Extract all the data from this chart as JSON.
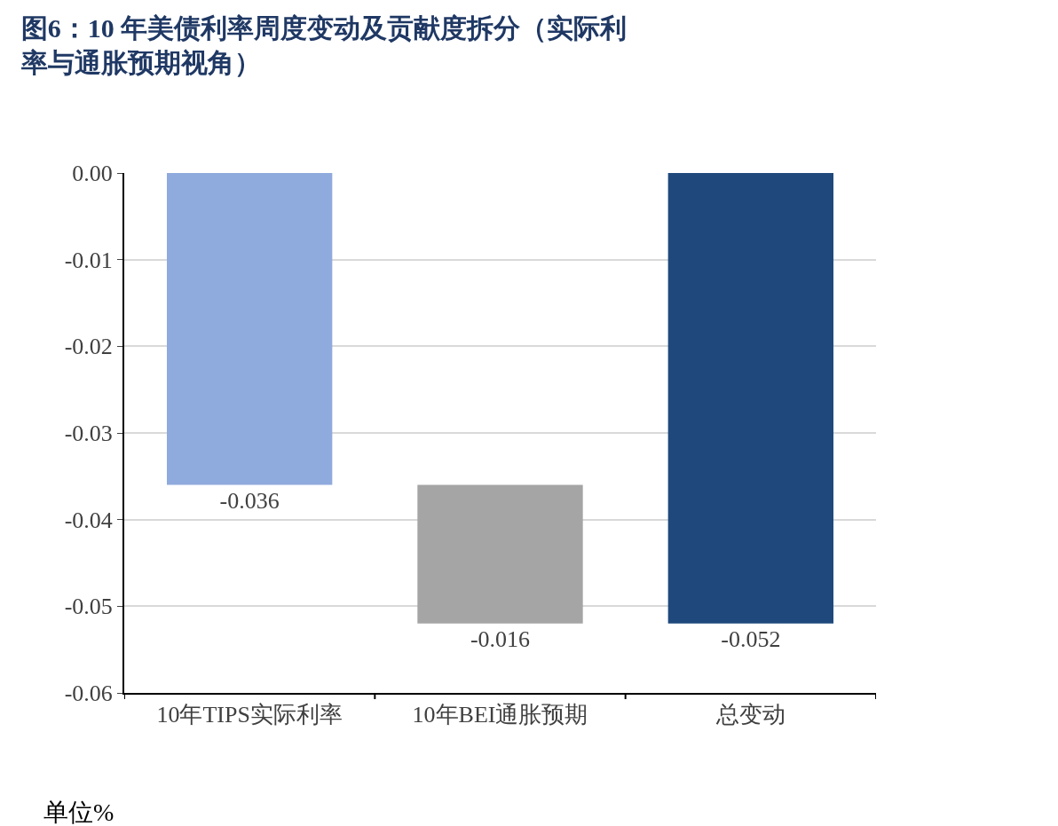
{
  "chart_data": {
    "type": "bar",
    "title": "图6：10 年美债利率周度变动及贡献度拆分（实际利率与通胀预期视角）",
    "categories": [
      "10年TIPS实际利率",
      "10年BEI通胀预期",
      "总变动"
    ],
    "values": [
      -0.036,
      -0.016,
      -0.052
    ],
    "base": [
      0,
      -0.036,
      0
    ],
    "colors": [
      "#8faadc",
      "#a5a5a5",
      "#1f497d"
    ],
    "data_labels": true,
    "ylim": [
      -0.06,
      0
    ],
    "yticks": [
      {
        "value": 0,
        "label": "0.00"
      },
      {
        "value": -0.01,
        "label": "-0.01"
      },
      {
        "value": -0.02,
        "label": "-0.02"
      },
      {
        "value": -0.03,
        "label": "-0.03"
      },
      {
        "value": -0.04,
        "label": "-0.04"
      },
      {
        "value": -0.05,
        "label": "-0.05"
      },
      {
        "value": -0.06,
        "label": "-0.06"
      }
    ],
    "grid": "y",
    "legend": false,
    "annotations": [
      "单位%"
    ]
  }
}
